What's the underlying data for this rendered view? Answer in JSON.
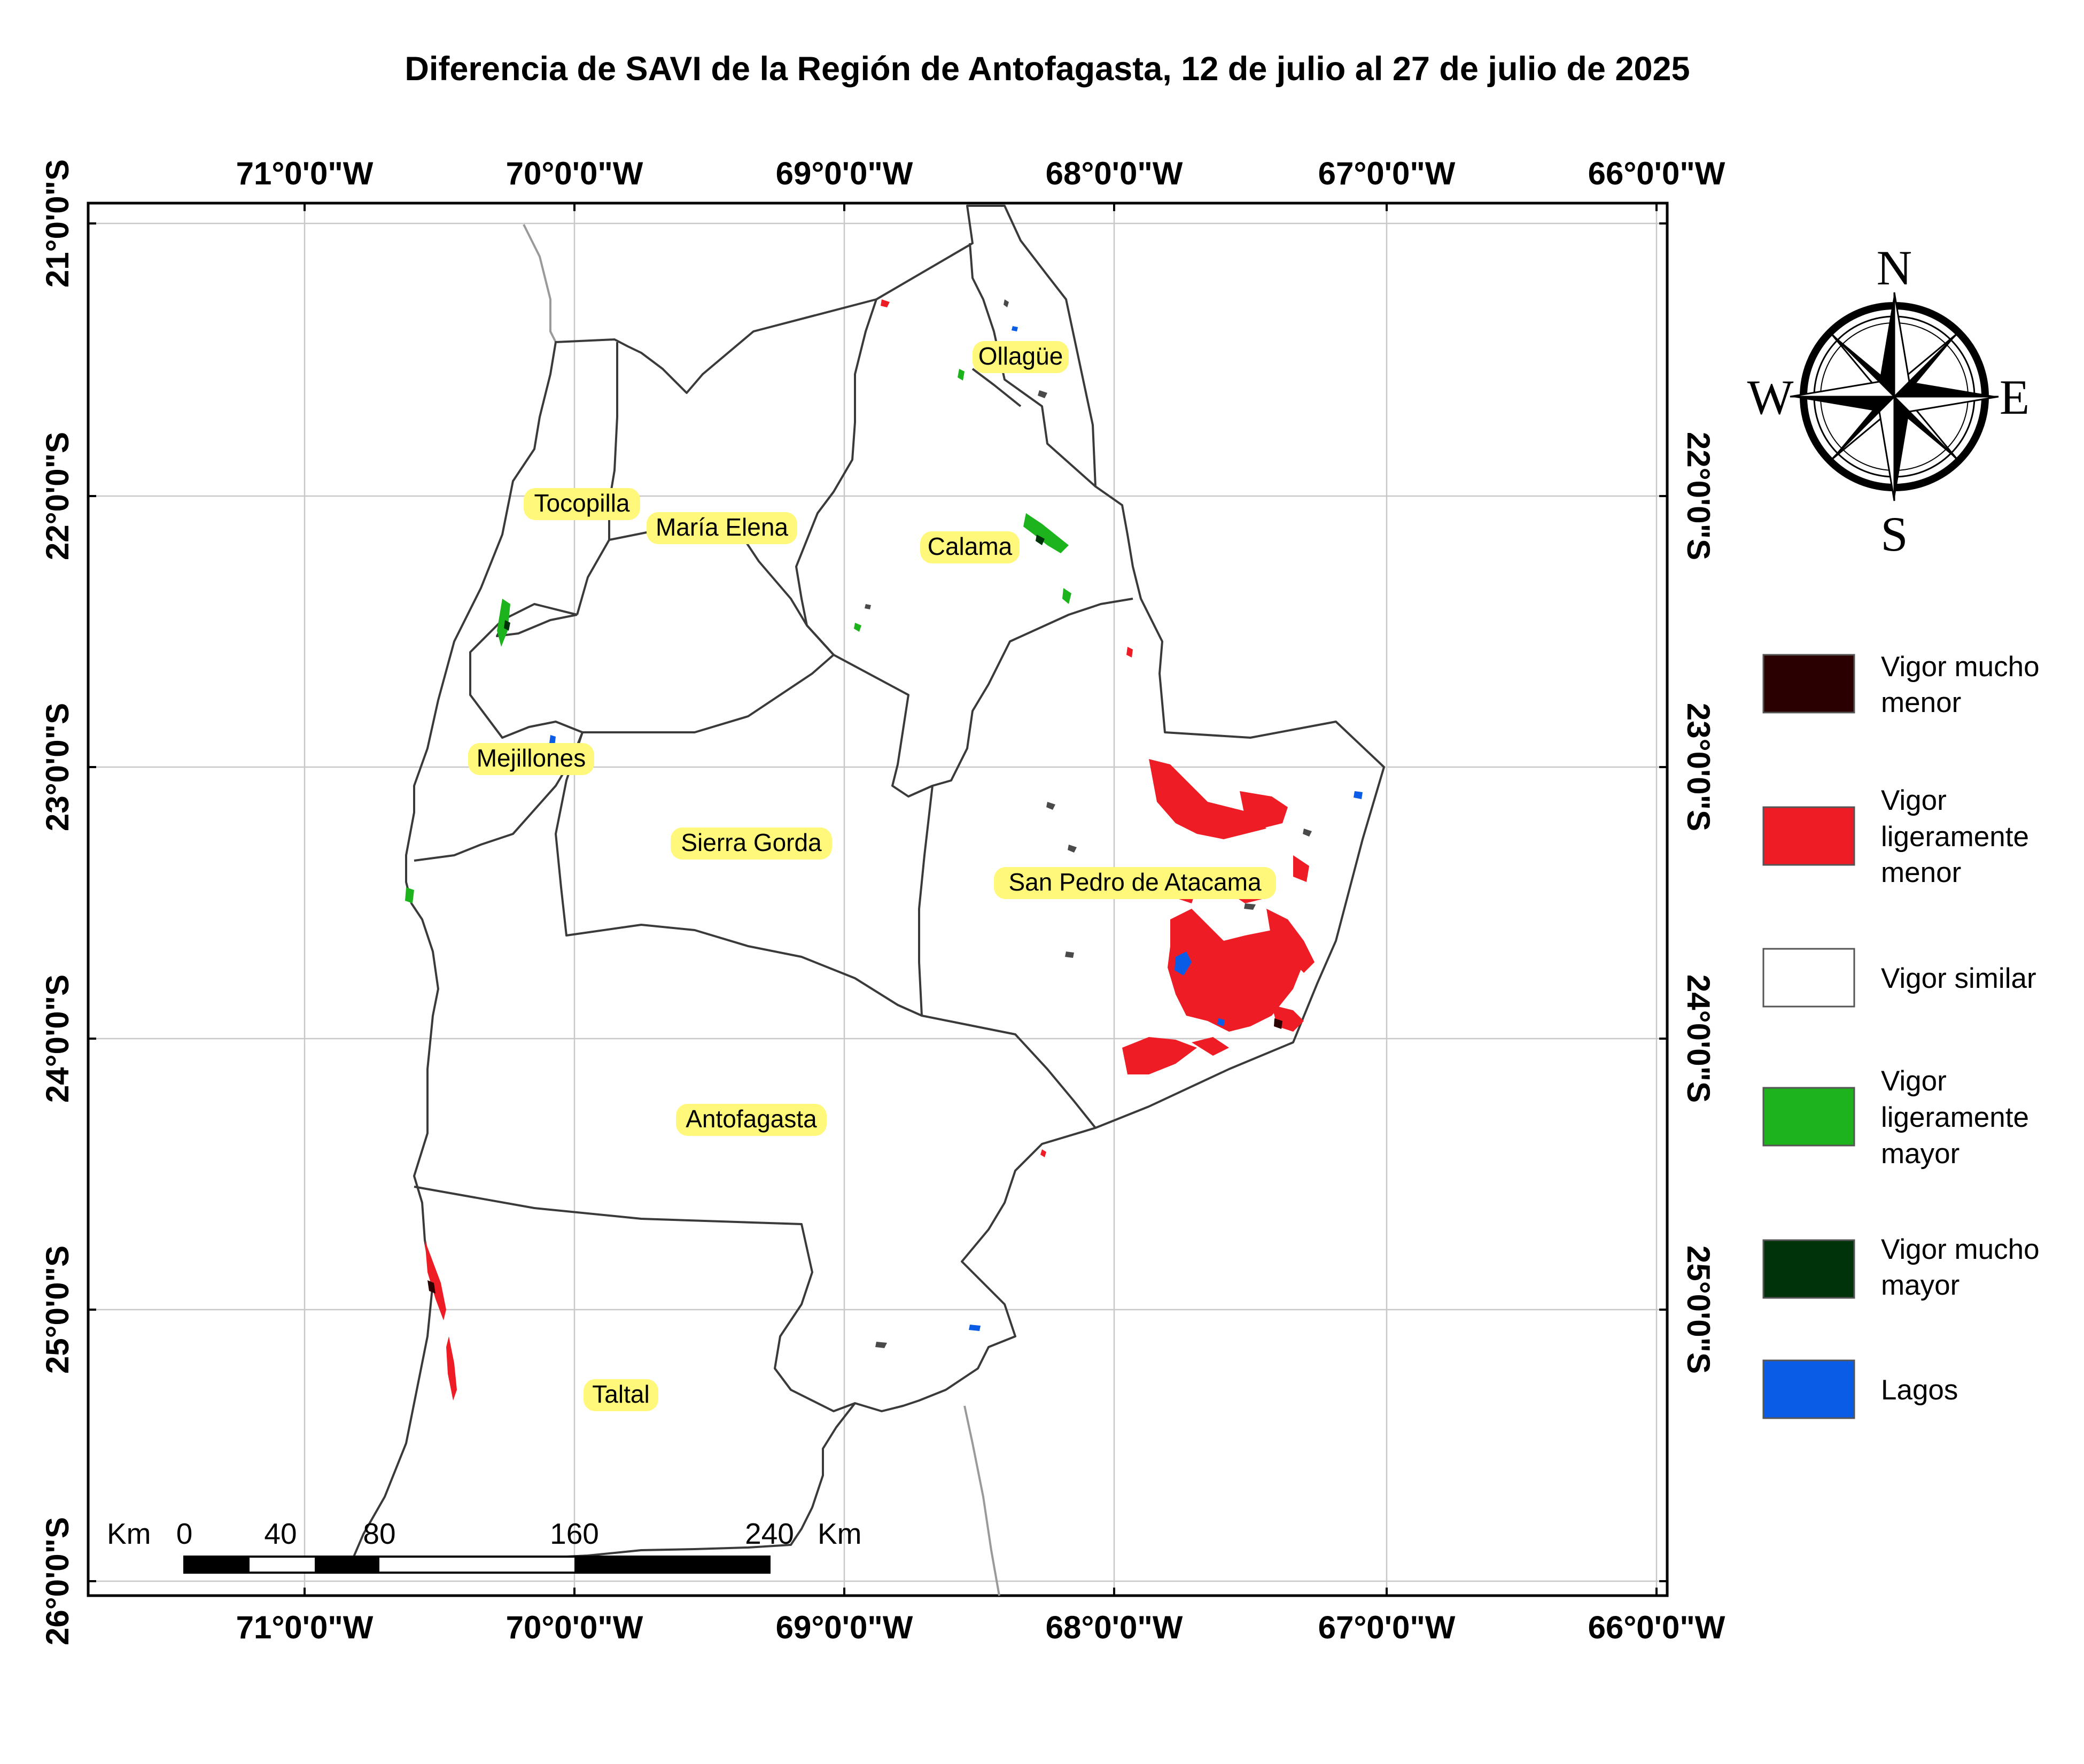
{
  "map": {
    "title": "Diferencia de SAVI de la Región de Antofagasta, 12 de julio al 27 de julio de 2025",
    "longitude_labels": [
      "71°0'0\"W",
      "70°0'0\"W",
      "69°0'0\"W",
      "68°0'0\"W",
      "67°0'0\"W",
      "66°0'0\"W"
    ],
    "latitude_labels": [
      "21°0'0\"S",
      "22°0'0\"S",
      "23°0'0\"S",
      "24°0'0\"S",
      "25°0'0\"S",
      "26°0'0\"S"
    ]
  },
  "places": [
    {
      "id": "ollague",
      "name": "Ollagüe"
    },
    {
      "id": "tocopilla",
      "name": "Tocopilla"
    },
    {
      "id": "maria-elena",
      "name": "María Elena"
    },
    {
      "id": "calama",
      "name": "Calama"
    },
    {
      "id": "mejillones",
      "name": "Mejillones"
    },
    {
      "id": "sierra-gorda",
      "name": "Sierra Gorda"
    },
    {
      "id": "san-pedro",
      "name": "San Pedro de Atacama"
    },
    {
      "id": "antofagasta",
      "name": "Antofagasta"
    },
    {
      "id": "taltal",
      "name": "Taltal"
    }
  ],
  "legend": {
    "items": [
      {
        "lines": [
          "Vigor mucho",
          "menor"
        ],
        "color": "#2b0000"
      },
      {
        "lines": [
          "Vigor",
          "ligeramente",
          "menor"
        ],
        "color": "#ee1c25"
      },
      {
        "lines": [
          "Vigor similar"
        ],
        "color": "#ffffff"
      },
      {
        "lines": [
          "Vigor",
          "ligeramente",
          "mayor"
        ],
        "color": "#1db31d"
      },
      {
        "lines": [
          "Vigor mucho",
          "mayor"
        ],
        "color": "#00330a"
      },
      {
        "lines": [
          "Lagos"
        ],
        "color": "#0a5ce6"
      }
    ]
  },
  "compass": {
    "north": "N",
    "south": "S",
    "east": "E",
    "west": "W"
  },
  "scale_bar": {
    "unit_left": "Km",
    "unit_right": "Km",
    "ticks": [
      "0",
      "40",
      "80",
      "160",
      "240"
    ]
  }
}
